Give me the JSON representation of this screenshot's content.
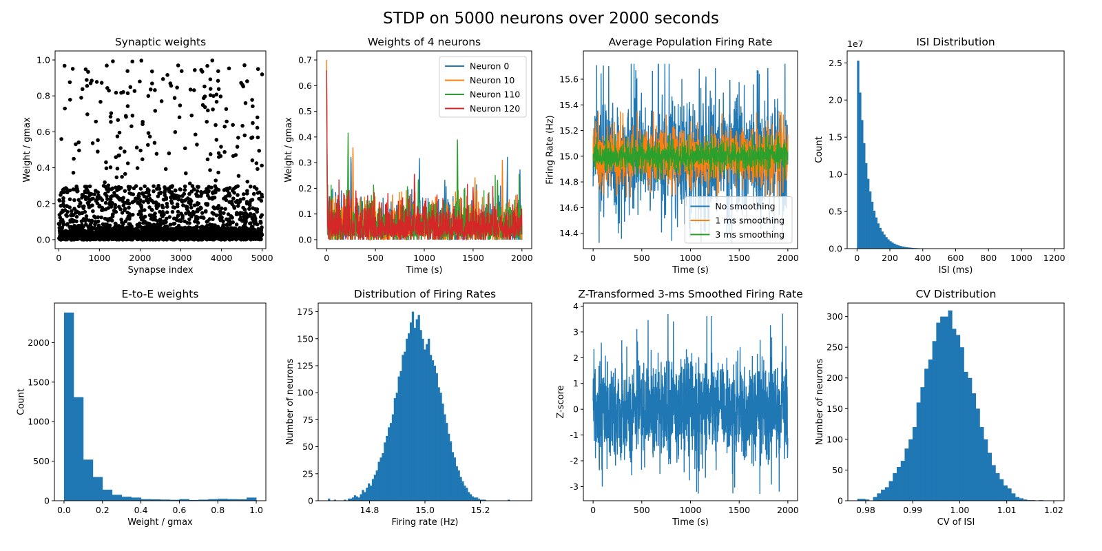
{
  "figure": {
    "title": "STDP on 5000 neurons over 2000 seconds"
  },
  "colors": {
    "blue": "#1f77b4",
    "orange": "#ff7f0e",
    "green": "#2ca02c",
    "red": "#d62728",
    "black": "#000000"
  },
  "chart_data": [
    {
      "id": "synaptic",
      "type": "scatter",
      "title": "Synaptic weights",
      "xlabel": "Synapse index",
      "ylabel": "Weight / gmax",
      "xlim": [
        -90,
        5090
      ],
      "ylim": [
        -0.05,
        1.05
      ],
      "xticks": [
        0,
        1000,
        2000,
        3000,
        4000,
        5000
      ],
      "yticks": [
        0.0,
        0.2,
        0.4,
        0.6,
        0.8,
        1.0
      ],
      "ytick_decimals": 1,
      "grid": false,
      "points": {
        "n": 5000,
        "x_range": [
          0,
          4999
        ],
        "distribution": "exponential-like, most weights near 0, sparse up to 1.0"
      }
    },
    {
      "id": "weights4",
      "type": "line",
      "title": "Weights of 4 neurons",
      "xlabel": "Time (s)",
      "ylabel": "Weight / gmax",
      "xlim": [
        -100,
        2100
      ],
      "ylim": [
        -0.035,
        0.735
      ],
      "xticks": [
        0,
        500,
        1000,
        1500,
        2000
      ],
      "yticks": [
        0.0,
        0.1,
        0.2,
        0.3,
        0.4,
        0.5,
        0.6,
        0.7
      ],
      "ytick_decimals": 1,
      "legend": "top-right",
      "series": [
        {
          "name": "Neuron 0",
          "color": "blue",
          "start": 0.65,
          "peaks": [
            [
              250,
              0.36
            ],
            [
              950,
              0.32
            ],
            [
              1210,
              0.24
            ],
            [
              1850,
              0.27
            ],
            [
              1980,
              0.22
            ]
          ]
        },
        {
          "name": "Neuron 10",
          "color": "orange",
          "start": 0.7,
          "peaks": [
            [
              270,
              0.4
            ],
            [
              1800,
              0.32
            ],
            [
              1520,
              0.26
            ]
          ]
        },
        {
          "name": "Neuron 110",
          "color": "green",
          "start": 0.6,
          "peaks": [
            [
              220,
              0.43
            ],
            [
              1340,
              0.43
            ],
            [
              940,
              0.27
            ],
            [
              1750,
              0.26
            ]
          ]
        },
        {
          "name": "Neuron 120",
          "color": "red",
          "start": 0.66,
          "peaks": [
            [
              300,
              0.2
            ],
            [
              900,
              0.26
            ],
            [
              1500,
              0.22
            ]
          ]
        }
      ]
    },
    {
      "id": "poprate",
      "type": "line",
      "title": "Average Population Firing Rate",
      "xlabel": "Time (s)",
      "ylabel": "Firing Rate (Hz)",
      "xlim": [
        -100,
        2100
      ],
      "ylim": [
        14.28,
        15.82
      ],
      "xticks": [
        0,
        500,
        1000,
        1500,
        2000
      ],
      "yticks": [
        14.4,
        14.6,
        14.8,
        15.0,
        15.2,
        15.4,
        15.6
      ],
      "ytick_decimals": 1,
      "legend": "bottom-right",
      "series": [
        {
          "name": "No smoothing",
          "color": "blue",
          "mean": 15.0,
          "band": [
            14.55,
            15.47
          ],
          "extremes": [
            14.32,
            15.72
          ]
        },
        {
          "name": "1 ms smoothing",
          "color": "orange",
          "mean": 15.0,
          "band": [
            14.78,
            15.24
          ],
          "extremes": [
            14.68,
            15.35
          ]
        },
        {
          "name": "3 ms smoothing",
          "color": "green",
          "mean": 15.0,
          "band": [
            14.88,
            15.1
          ],
          "extremes": [
            14.8,
            15.17
          ]
        }
      ]
    },
    {
      "id": "isi",
      "type": "bar",
      "title": "ISI Distribution",
      "xlabel": "ISI (ms)",
      "ylabel": "Count",
      "offset_label": "1e7",
      "xlim": [
        -60,
        1260
      ],
      "ylim": [
        0,
        2.66
      ],
      "xticks": [
        0,
        200,
        400,
        600,
        800,
        1000,
        1200
      ],
      "yticks": [
        0.0,
        0.5,
        1.0,
        1.5,
        2.0,
        2.5
      ],
      "ytick_decimals": 1,
      "bin_width": 12.3,
      "values": [
        2.53,
        2.1,
        1.73,
        1.42,
        1.15,
        0.94,
        0.77,
        0.63,
        0.51,
        0.42,
        0.34,
        0.28,
        0.23,
        0.19,
        0.155,
        0.125,
        0.1,
        0.082,
        0.067,
        0.054,
        0.044,
        0.036,
        0.029,
        0.024,
        0.019,
        0.016,
        0.013,
        0.01,
        0.008,
        0.0065,
        0.005,
        0.004,
        0.003,
        0.0025,
        0.002,
        0.0015,
        0.001,
        0.0008
      ]
    },
    {
      "id": "ee",
      "type": "bar",
      "title": "E-to-E weights",
      "xlabel": "Weight / gmax",
      "ylabel": "Count",
      "xlim": [
        -0.05,
        1.05
      ],
      "ylim": [
        0,
        2500
      ],
      "xticks": [
        0.0,
        0.2,
        0.4,
        0.6,
        0.8,
        1.0
      ],
      "yticks": [
        0,
        500,
        1000,
        1500,
        2000
      ],
      "xtick_decimals": 1,
      "bin_start": 0.0,
      "bin_width": 0.05,
      "values": [
        2380,
        1310,
        520,
        300,
        140,
        75,
        50,
        40,
        20,
        18,
        15,
        12,
        20,
        10,
        14,
        20,
        25,
        20,
        18,
        40
      ]
    },
    {
      "id": "ratedist",
      "type": "bar",
      "title": "Distribution of Firing Rates",
      "xlabel": "Firing rate (Hz)",
      "ylabel": "Number of neurons",
      "xlim": [
        14.615,
        15.385
      ],
      "ylim": [
        0,
        183
      ],
      "xticks": [
        14.8,
        15.0,
        15.2
      ],
      "yticks": [
        0,
        25,
        50,
        75,
        100,
        125,
        150,
        175
      ],
      "xtick_decimals": 1,
      "bin_start": 14.65,
      "bin_width": 0.0072,
      "values": [
        2,
        0,
        0,
        1,
        0,
        0,
        0,
        0,
        1,
        0,
        2,
        2,
        3,
        5,
        4,
        3,
        6,
        10,
        8,
        12,
        16,
        14,
        20,
        24,
        28,
        36,
        40,
        44,
        54,
        60,
        68,
        72,
        80,
        95,
        100,
        115,
        120,
        135,
        138,
        150,
        155,
        165,
        175,
        160,
        168,
        172,
        158,
        150,
        140,
        145,
        150,
        135,
        130,
        125,
        118,
        105,
        100,
        90,
        80,
        72,
        62,
        55,
        45,
        40,
        32,
        28,
        22,
        18,
        14,
        12,
        8,
        6,
        4,
        3,
        3,
        2,
        1,
        1,
        1,
        0,
        0,
        0,
        0,
        0,
        0,
        0,
        0,
        0,
        0,
        0,
        1
      ]
    },
    {
      "id": "ztrans",
      "type": "line",
      "title": "Z-Transformed 3-ms Smoothed Firing Rate",
      "xlabel": "Time (s)",
      "ylabel": "Z-score",
      "xlim": [
        -100,
        2100
      ],
      "ylim": [
        -3.55,
        4.12
      ],
      "xticks": [
        0,
        500,
        1000,
        1500,
        2000
      ],
      "yticks": [
        -3,
        -2,
        -1,
        0,
        1,
        2,
        3,
        4
      ],
      "series": [
        {
          "name": "",
          "color": "blue",
          "mean": 0.0,
          "band": [
            -1.9,
            1.9
          ],
          "extremes": [
            -3.3,
            3.75
          ]
        }
      ]
    },
    {
      "id": "cv",
      "type": "bar",
      "title": "CV Distribution",
      "xlabel": "CV of ISI",
      "ylabel": "Number of neurons",
      "xlim": [
        0.9762,
        1.0222
      ],
      "ylim": [
        0,
        322
      ],
      "xticks": [
        0.98,
        0.99,
        1.0,
        1.01,
        1.02
      ],
      "yticks": [
        0,
        50,
        100,
        150,
        200,
        250,
        300
      ],
      "xtick_decimals": 2,
      "bin_start": 0.9782,
      "bin_width": 0.00084,
      "values": [
        3,
        3,
        2,
        0,
        6,
        12,
        18,
        22,
        32,
        45,
        55,
        65,
        85,
        100,
        120,
        160,
        185,
        215,
        230,
        260,
        290,
        300,
        300,
        310,
        280,
        270,
        250,
        210,
        200,
        175,
        150,
        120,
        100,
        78,
        58,
        45,
        35,
        25,
        20,
        12,
        6,
        4,
        2,
        1,
        1,
        0,
        1
      ]
    }
  ]
}
